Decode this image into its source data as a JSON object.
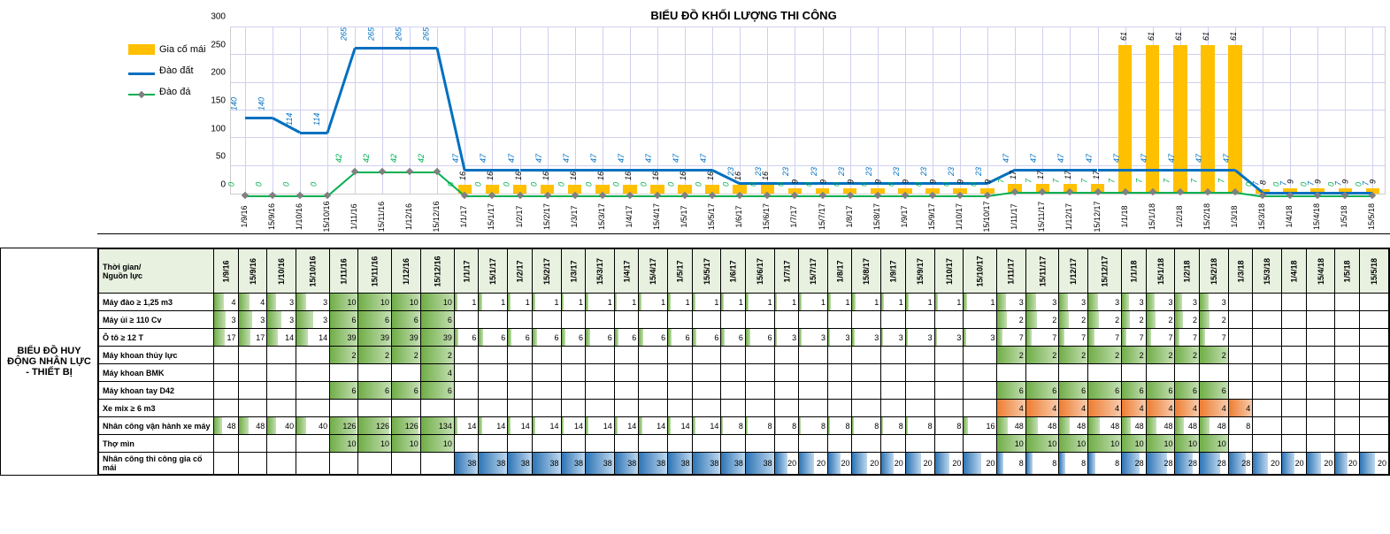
{
  "chart": {
    "title": "BIỂU ĐỒ KHỐI LƯỢNG THI CÔNG",
    "ylim": [
      0,
      300
    ],
    "ytick_step": 50,
    "colors": {
      "bar": "#ffc000",
      "line_blue": "#0070c0",
      "line_green": "#00b050",
      "marker": "#808080",
      "grid": "#d0d0f0"
    },
    "legend": [
      {
        "label": "Gia cố mái",
        "type": "bar",
        "color": "#ffc000"
      },
      {
        "label": "Đào đất",
        "type": "line",
        "color": "#0070c0"
      },
      {
        "label": "Đào đá",
        "type": "line",
        "color": "#00b050"
      }
    ],
    "categories": [
      "1/9/16",
      "15/9/16",
      "1/10/16",
      "15/10/16",
      "1/11/16",
      "15/11/16",
      "1/12/16",
      "15/12/16",
      "1/1/17",
      "15/1/17",
      "1/2/17",
      "15/2/17",
      "1/3/17",
      "15/3/17",
      "1/4/17",
      "15/4/17",
      "1/5/17",
      "15/5/17",
      "1/6/17",
      "15/6/17",
      "1/7/17",
      "15/7/17",
      "1/8/17",
      "15/8/17",
      "1/9/17",
      "15/9/17",
      "1/10/17",
      "15/10/17",
      "1/11/17",
      "15/11/17",
      "1/12/17",
      "15/12/17",
      "1/1/18",
      "15/1/18",
      "1/2/18",
      "15/2/18",
      "1/3/18",
      "15/3/18",
      "1/4/18",
      "15/4/18",
      "1/5/18",
      "15/5/18"
    ],
    "bar_values": [
      0,
      0,
      0,
      0,
      0,
      0,
      0,
      0,
      16,
      16,
      16,
      16,
      16,
      16,
      16,
      16,
      16,
      16,
      16,
      16,
      9,
      9,
      9,
      9,
      9,
      9,
      9,
      9,
      17,
      17,
      17,
      17,
      61,
      61,
      61,
      61,
      61,
      8,
      9,
      9,
      9,
      9
    ],
    "blue_values": [
      140,
      140,
      114,
      114,
      265,
      265,
      265,
      265,
      47,
      47,
      47,
      47,
      47,
      47,
      47,
      47,
      47,
      47,
      23,
      23,
      23,
      23,
      23,
      23,
      23,
      23,
      23,
      23,
      47,
      47,
      47,
      47,
      47,
      47,
      47,
      47,
      47,
      7,
      7,
      7,
      7,
      7
    ],
    "green_values": [
      0,
      0,
      0,
      0,
      42,
      42,
      42,
      42,
      0,
      0,
      0,
      0,
      0,
      0,
      0,
      0,
      0,
      0,
      0,
      0,
      0,
      0,
      0,
      0,
      0,
      0,
      0,
      0,
      7,
      7,
      7,
      7,
      7,
      7,
      7,
      7,
      7,
      0,
      0,
      0,
      0,
      0
    ]
  },
  "table": {
    "side_title": "BIỂU ĐỒ HUY ĐỘNG NHÂN LỰC - THIẾT BỊ",
    "header_label": "Thời gian/\nNguồn lực",
    "dates": [
      "1/9/16",
      "15/9/16",
      "1/10/16",
      "15/10/16",
      "1/11/16",
      "15/11/16",
      "1/12/16",
      "15/12/16",
      "1/1/17",
      "15/1/17",
      "1/2/17",
      "15/2/17",
      "1/3/17",
      "15/3/17",
      "1/4/17",
      "15/4/17",
      "1/5/17",
      "15/5/17",
      "1/6/17",
      "15/6/17",
      "1/7/17",
      "15/7/17",
      "1/8/17",
      "15/8/17",
      "1/9/17",
      "15/9/17",
      "1/10/17",
      "15/10/17",
      "1/11/17",
      "15/11/17",
      "1/12/17",
      "15/12/17",
      "1/1/18",
      "15/1/18",
      "1/2/18",
      "15/2/18",
      "1/3/18",
      "15/3/18",
      "1/4/18",
      "15/4/18",
      "1/5/18",
      "15/5/18"
    ],
    "rows": [
      {
        "label": "Máy đào ≥ 1,25 m3",
        "fill": "green",
        "max": 10,
        "v": [
          4,
          4,
          3,
          3,
          10,
          10,
          10,
          10,
          1,
          1,
          1,
          1,
          1,
          1,
          1,
          1,
          1,
          1,
          1,
          1,
          1,
          1,
          1,
          1,
          1,
          1,
          1,
          1,
          3,
          3,
          3,
          3,
          3,
          3,
          3,
          3,
          null,
          null,
          null,
          null,
          null,
          null
        ]
      },
      {
        "label": "Máy ủi ≥ 110 Cv",
        "fill": "green",
        "max": 6,
        "v": [
          3,
          3,
          3,
          3,
          6,
          6,
          6,
          6,
          null,
          null,
          null,
          null,
          null,
          null,
          null,
          null,
          null,
          null,
          null,
          null,
          null,
          null,
          null,
          null,
          null,
          null,
          null,
          null,
          2,
          2,
          2,
          2,
          2,
          2,
          2,
          2,
          null,
          null,
          null,
          null,
          null,
          null
        ]
      },
      {
        "label": "Ô tô ≥ 12 T",
        "fill": "green",
        "max": 39,
        "v": [
          17,
          17,
          14,
          14,
          39,
          39,
          39,
          39,
          6,
          6,
          6,
          6,
          6,
          6,
          6,
          6,
          6,
          6,
          6,
          6,
          3,
          3,
          3,
          3,
          3,
          3,
          3,
          3,
          7,
          7,
          7,
          7,
          7,
          7,
          7,
          7,
          null,
          null,
          null,
          null,
          null,
          null
        ]
      },
      {
        "label": "Máy khoan thủy lực",
        "fill": "green",
        "max": 2,
        "v": [
          null,
          null,
          null,
          null,
          2,
          2,
          2,
          2,
          null,
          null,
          null,
          null,
          null,
          null,
          null,
          null,
          null,
          null,
          null,
          null,
          null,
          null,
          null,
          null,
          null,
          null,
          null,
          null,
          2,
          2,
          2,
          2,
          2,
          2,
          2,
          2,
          null,
          null,
          null,
          null,
          null,
          null
        ]
      },
      {
        "label": "Máy khoan BMK",
        "fill": "green",
        "max": 4,
        "v": [
          null,
          null,
          null,
          null,
          null,
          null,
          null,
          4,
          null,
          null,
          null,
          null,
          null,
          null,
          null,
          null,
          null,
          null,
          null,
          null,
          null,
          null,
          null,
          null,
          null,
          null,
          null,
          null,
          null,
          null,
          null,
          null,
          null,
          null,
          null,
          null,
          null,
          null,
          null,
          null,
          null,
          null
        ]
      },
      {
        "label": "Máy khoan tay D42",
        "fill": "green",
        "max": 6,
        "v": [
          null,
          null,
          null,
          null,
          6,
          6,
          6,
          6,
          null,
          null,
          null,
          null,
          null,
          null,
          null,
          null,
          null,
          null,
          null,
          null,
          null,
          null,
          null,
          null,
          null,
          null,
          null,
          null,
          6,
          6,
          6,
          6,
          6,
          6,
          6,
          6,
          null,
          null,
          null,
          null,
          null,
          null
        ]
      },
      {
        "label": "Xe mix ≥ 6 m3",
        "fill": "orange",
        "max": 4,
        "v": [
          null,
          null,
          null,
          null,
          null,
          null,
          null,
          null,
          null,
          null,
          null,
          null,
          null,
          null,
          null,
          null,
          null,
          null,
          null,
          null,
          null,
          null,
          null,
          null,
          null,
          null,
          null,
          null,
          4,
          4,
          4,
          4,
          4,
          4,
          4,
          4,
          4,
          null,
          null,
          null,
          null,
          null
        ]
      },
      {
        "label": "Nhân công vận hành xe máy",
        "fill": "green",
        "max": 134,
        "v": [
          48,
          48,
          40,
          40,
          126,
          126,
          126,
          134,
          14,
          14,
          14,
          14,
          14,
          14,
          14,
          14,
          14,
          14,
          8,
          8,
          8,
          8,
          8,
          8,
          8,
          8,
          8,
          16,
          48,
          48,
          48,
          48,
          48,
          48,
          48,
          48,
          8,
          null,
          null,
          null,
          null,
          null
        ]
      },
      {
        "label": "Thợ mìn",
        "fill": "green",
        "max": 10,
        "v": [
          null,
          null,
          null,
          null,
          10,
          10,
          10,
          10,
          null,
          null,
          null,
          null,
          null,
          null,
          null,
          null,
          null,
          null,
          null,
          null,
          null,
          null,
          null,
          null,
          null,
          null,
          null,
          null,
          10,
          10,
          10,
          10,
          10,
          10,
          10,
          10,
          null,
          null,
          null,
          null,
          null,
          null
        ]
      },
      {
        "label": "Nhân công thi công gia cố mái",
        "fill": "blue",
        "max": 38,
        "v": [
          null,
          null,
          null,
          null,
          null,
          null,
          null,
          null,
          38,
          38,
          38,
          38,
          38,
          38,
          38,
          38,
          38,
          38,
          38,
          38,
          20,
          20,
          20,
          20,
          20,
          20,
          20,
          20,
          8,
          8,
          8,
          8,
          28,
          28,
          28,
          28,
          28,
          20,
          20,
          20,
          20,
          20
        ]
      }
    ]
  }
}
